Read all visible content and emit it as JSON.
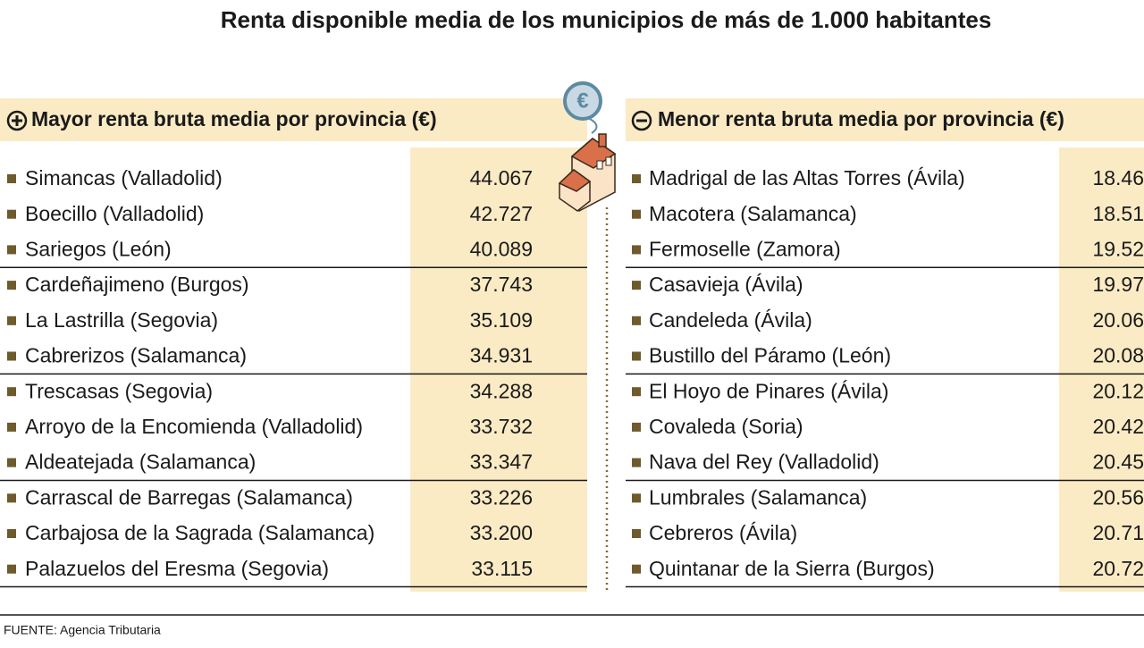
{
  "title": "Renta disponible media de los municipios de más de 1.000 habitantes",
  "left": {
    "title": "Mayor renta bruta media por provincia (€)",
    "rows": [
      [
        "Simancas (Valladolid)",
        "44.067"
      ],
      [
        "Boecillo (Valladolid)",
        "42.727"
      ],
      [
        "Sariegos (León)",
        "40.089"
      ],
      [
        "Cardeñajimeno (Burgos)",
        "37.743"
      ],
      [
        "La Lastrilla (Segovia)",
        "35.109"
      ],
      [
        "Cabrerizos (Salamanca)",
        "34.931"
      ],
      [
        "Trescasas (Segovia)",
        "34.288"
      ],
      [
        "Arroyo de la Encomienda (Valladolid)",
        "33.732"
      ],
      [
        "Aldeatejada (Salamanca)",
        "33.347"
      ],
      [
        "Carrascal de Barregas (Salamanca)",
        "33.226"
      ],
      [
        "Carbajosa de la Sagrada (Salamanca)",
        "33.200"
      ],
      [
        "Palazuelos del Eresma (Segovia)",
        "33.115"
      ]
    ]
  },
  "right": {
    "title": "Menor renta bruta media por provincia (€)",
    "rows": [
      [
        "Madrigal de las Altas Torres (Ávila)",
        "18.46"
      ],
      [
        "Macotera (Salamanca)",
        "18.51"
      ],
      [
        "Fermoselle (Zamora)",
        "19.52"
      ],
      [
        "Casavieja (Ávila)",
        "19.97"
      ],
      [
        "Candeleda (Ávila)",
        "20.06"
      ],
      [
        "Bustillo del Páramo (León)",
        "20.08"
      ],
      [
        "El Hoyo de Pinares (Ávila)",
        "20.12"
      ],
      [
        "Covaleda (Soria)",
        "20.42"
      ],
      [
        "Nava del Rey (Valladolid)",
        "20.45"
      ],
      [
        "Lumbrales (Salamanca)",
        "20.56"
      ],
      [
        "Cebreros (Ávila)",
        "20.71"
      ],
      [
        "Quintanar de la Sierra (Burgos)",
        "20.72"
      ]
    ]
  },
  "source": "FUENTE: Agencia Tributaria"
}
